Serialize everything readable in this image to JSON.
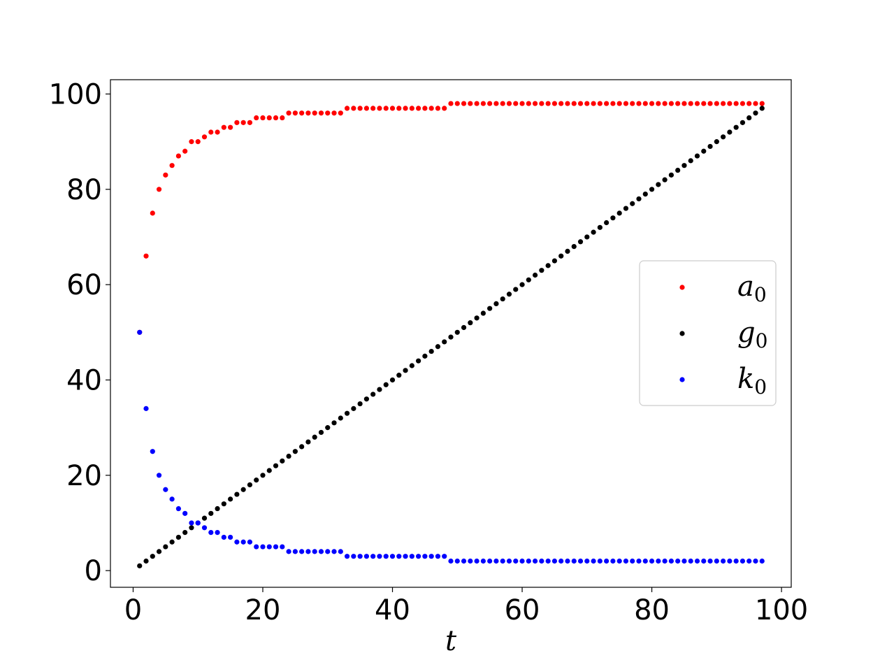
{
  "chart_data": {
    "type": "scatter",
    "xlabel": "t",
    "ylabel": "",
    "title": "",
    "xlim": [
      -3.5,
      101.5
    ],
    "ylim": [
      -3.5,
      103
    ],
    "xticks": [
      0,
      20,
      40,
      60,
      80,
      100
    ],
    "yticks": [
      0,
      20,
      40,
      60,
      80,
      100
    ],
    "grid": false,
    "legend_position": "center-right",
    "series": [
      {
        "name": "a",
        "subscript": "0",
        "color": "#ff0000",
        "x": [
          1,
          2,
          3,
          4,
          5,
          6,
          7,
          8,
          9,
          10,
          11,
          12,
          13,
          14,
          15,
          16,
          17,
          18,
          19,
          20,
          21,
          22,
          23,
          24,
          25,
          26,
          27,
          28,
          29,
          30,
          31,
          32,
          33,
          34,
          35,
          36,
          37,
          38,
          39,
          40,
          41,
          42,
          43,
          44,
          45,
          46,
          47,
          48,
          49,
          50,
          51,
          52,
          53,
          54,
          55,
          56,
          57,
          58,
          59,
          60,
          61,
          62,
          63,
          64,
          65,
          66,
          67,
          68,
          69,
          70,
          71,
          72,
          73,
          74,
          75,
          76,
          77,
          78,
          79,
          80,
          81,
          82,
          83,
          84,
          85,
          86,
          87,
          88,
          89,
          90,
          91,
          92,
          93,
          94,
          95,
          96,
          97
        ],
        "y": [
          50,
          66,
          75,
          80,
          83,
          85,
          87,
          88,
          90,
          90,
          91,
          92,
          92,
          93,
          93,
          94,
          94,
          94,
          95,
          95,
          95,
          95,
          95,
          96,
          96,
          96,
          96,
          96,
          96,
          96,
          96,
          96,
          97,
          97,
          97,
          97,
          97,
          97,
          97,
          97,
          97,
          97,
          97,
          97,
          97,
          97,
          97,
          97,
          98,
          98,
          98,
          98,
          98,
          98,
          98,
          98,
          98,
          98,
          98,
          98,
          98,
          98,
          98,
          98,
          98,
          98,
          98,
          98,
          98,
          98,
          98,
          98,
          98,
          98,
          98,
          98,
          98,
          98,
          98,
          98,
          98,
          98,
          98,
          98,
          98,
          98,
          98,
          98,
          98,
          98,
          98,
          98,
          98,
          98,
          98,
          98,
          98
        ]
      },
      {
        "name": "g",
        "subscript": "0",
        "color": "#000000",
        "x": [
          1,
          2,
          3,
          4,
          5,
          6,
          7,
          8,
          9,
          10,
          11,
          12,
          13,
          14,
          15,
          16,
          17,
          18,
          19,
          20,
          21,
          22,
          23,
          24,
          25,
          26,
          27,
          28,
          29,
          30,
          31,
          32,
          33,
          34,
          35,
          36,
          37,
          38,
          39,
          40,
          41,
          42,
          43,
          44,
          45,
          46,
          47,
          48,
          49,
          50,
          51,
          52,
          53,
          54,
          55,
          56,
          57,
          58,
          59,
          60,
          61,
          62,
          63,
          64,
          65,
          66,
          67,
          68,
          69,
          70,
          71,
          72,
          73,
          74,
          75,
          76,
          77,
          78,
          79,
          80,
          81,
          82,
          83,
          84,
          85,
          86,
          87,
          88,
          89,
          90,
          91,
          92,
          93,
          94,
          95,
          96,
          97
        ],
        "y": [
          1,
          2,
          3,
          4,
          5,
          6,
          7,
          8,
          9,
          10,
          11,
          12,
          13,
          14,
          15,
          16,
          17,
          18,
          19,
          20,
          21,
          22,
          23,
          24,
          25,
          26,
          27,
          28,
          29,
          30,
          31,
          32,
          33,
          34,
          35,
          36,
          37,
          38,
          39,
          40,
          41,
          42,
          43,
          44,
          45,
          46,
          47,
          48,
          49,
          50,
          51,
          52,
          53,
          54,
          55,
          56,
          57,
          58,
          59,
          60,
          61,
          62,
          63,
          64,
          65,
          66,
          67,
          68,
          69,
          70,
          71,
          72,
          73,
          74,
          75,
          76,
          77,
          78,
          79,
          80,
          81,
          82,
          83,
          84,
          85,
          86,
          87,
          88,
          89,
          90,
          91,
          92,
          93,
          94,
          95,
          96,
          97
        ]
      },
      {
        "name": "k",
        "subscript": "0",
        "color": "#0000ff",
        "x": [
          1,
          2,
          3,
          4,
          5,
          6,
          7,
          8,
          9,
          10,
          11,
          12,
          13,
          14,
          15,
          16,
          17,
          18,
          19,
          20,
          21,
          22,
          23,
          24,
          25,
          26,
          27,
          28,
          29,
          30,
          31,
          32,
          33,
          34,
          35,
          36,
          37,
          38,
          39,
          40,
          41,
          42,
          43,
          44,
          45,
          46,
          47,
          48,
          49,
          50,
          51,
          52,
          53,
          54,
          55,
          56,
          57,
          58,
          59,
          60,
          61,
          62,
          63,
          64,
          65,
          66,
          67,
          68,
          69,
          70,
          71,
          72,
          73,
          74,
          75,
          76,
          77,
          78,
          79,
          80,
          81,
          82,
          83,
          84,
          85,
          86,
          87,
          88,
          89,
          90,
          91,
          92,
          93,
          94,
          95,
          96,
          97
        ],
        "y": [
          50,
          34,
          25,
          20,
          17,
          15,
          13,
          12,
          10,
          10,
          9,
          8,
          8,
          7,
          7,
          6,
          6,
          6,
          5,
          5,
          5,
          5,
          5,
          4,
          4,
          4,
          4,
          4,
          4,
          4,
          4,
          4,
          3,
          3,
          3,
          3,
          3,
          3,
          3,
          3,
          3,
          3,
          3,
          3,
          3,
          3,
          3,
          3,
          2,
          2,
          2,
          2,
          2,
          2,
          2,
          2,
          2,
          2,
          2,
          2,
          2,
          2,
          2,
          2,
          2,
          2,
          2,
          2,
          2,
          2,
          2,
          2,
          2,
          2,
          2,
          2,
          2,
          2,
          2,
          2,
          2,
          2,
          2,
          2,
          2,
          2,
          2,
          2,
          2,
          2,
          2,
          2,
          2,
          2,
          2,
          2,
          2
        ]
      }
    ]
  }
}
